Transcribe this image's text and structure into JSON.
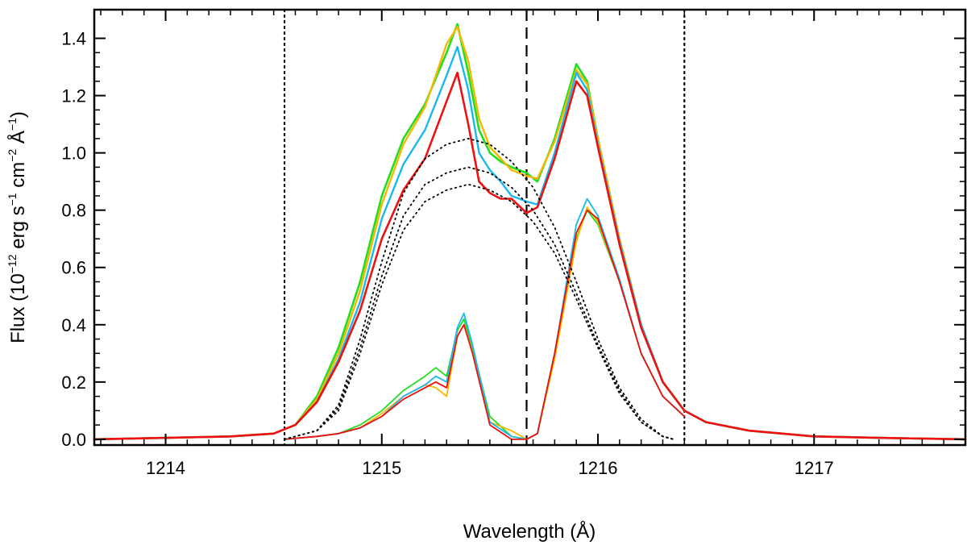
{
  "chart_data": {
    "type": "line",
    "title": "",
    "xlabel": "Wavelength (Å)",
    "ylabel_parts": {
      "base": "Flux (10",
      "exp1": "−12",
      "mid1": " erg s",
      "exp2": "−1",
      "mid2": " cm",
      "exp3": "−2",
      "mid3": " Å",
      "exp4": "−1",
      "end": ")"
    },
    "xlim": [
      1213.67,
      1217.7
    ],
    "ylim": [
      -0.02,
      1.5
    ],
    "x_ticks": [
      1214,
      1215,
      1216,
      1217
    ],
    "x_tick_labels": [
      "1214",
      "1215",
      "1216",
      "1217"
    ],
    "y_ticks": [
      0.0,
      0.2,
      0.4,
      0.6,
      0.8,
      1.0,
      1.2,
      1.4
    ],
    "y_tick_labels": [
      "0.0",
      "0.2",
      "0.4",
      "0.6",
      "0.8",
      "1.0",
      "1.2",
      "1.4"
    ],
    "vlines": [
      {
        "name": "left-integration-limit",
        "x": 1214.55,
        "style": "dotted"
      },
      {
        "name": "line-center",
        "x": 1215.67,
        "style": "dashed"
      },
      {
        "name": "right-integration-limit",
        "x": 1216.4,
        "style": "dotted"
      }
    ],
    "series": [
      {
        "name": "observed-green",
        "color": "#22dd22",
        "width": 2.6,
        "x": [
          1213.67,
          1214.0,
          1214.3,
          1214.5,
          1214.6,
          1214.7,
          1214.8,
          1214.9,
          1215.0,
          1215.1,
          1215.2,
          1215.3,
          1215.35,
          1215.4,
          1215.45,
          1215.5,
          1215.55,
          1215.6,
          1215.67,
          1215.72,
          1215.8,
          1215.9,
          1215.95,
          1216.0,
          1216.1,
          1216.2,
          1216.3,
          1216.4,
          1216.5,
          1216.7,
          1217.0,
          1217.3,
          1217.7
        ],
        "y": [
          0.0,
          0.005,
          0.01,
          0.02,
          0.05,
          0.15,
          0.32,
          0.55,
          0.85,
          1.05,
          1.17,
          1.35,
          1.45,
          1.28,
          1.08,
          1.0,
          0.97,
          0.95,
          0.93,
          0.9,
          1.05,
          1.31,
          1.25,
          1.05,
          0.7,
          0.4,
          0.2,
          0.1,
          0.06,
          0.03,
          0.01,
          0.005,
          0.0
        ]
      },
      {
        "name": "observed-orange",
        "color": "#f5b800",
        "width": 2.4,
        "x": [
          1213.67,
          1214.0,
          1214.3,
          1214.5,
          1214.6,
          1214.7,
          1214.8,
          1214.9,
          1215.0,
          1215.1,
          1215.2,
          1215.3,
          1215.35,
          1215.4,
          1215.45,
          1215.5,
          1215.55,
          1215.6,
          1215.67,
          1215.72,
          1215.8,
          1215.9,
          1215.95,
          1216.0,
          1216.1,
          1216.2,
          1216.3,
          1216.4,
          1216.5,
          1216.7,
          1217.0,
          1217.3,
          1217.7
        ],
        "y": [
          0.0,
          0.005,
          0.01,
          0.02,
          0.05,
          0.14,
          0.3,
          0.52,
          0.82,
          1.03,
          1.16,
          1.38,
          1.44,
          1.32,
          1.12,
          1.02,
          0.98,
          0.94,
          0.92,
          0.91,
          1.04,
          1.29,
          1.24,
          1.05,
          0.7,
          0.4,
          0.2,
          0.1,
          0.06,
          0.03,
          0.01,
          0.005,
          0.0
        ]
      },
      {
        "name": "observed-blue",
        "color": "#1ab8ee",
        "width": 2.4,
        "x": [
          1213.67,
          1214.0,
          1214.3,
          1214.5,
          1214.6,
          1214.7,
          1214.8,
          1214.9,
          1215.0,
          1215.1,
          1215.2,
          1215.3,
          1215.35,
          1215.4,
          1215.45,
          1215.5,
          1215.55,
          1215.6,
          1215.67,
          1215.72,
          1215.8,
          1215.9,
          1215.95,
          1216.0,
          1216.1,
          1216.2,
          1216.3,
          1216.4,
          1216.5,
          1216.7,
          1217.0,
          1217.3,
          1217.7
        ],
        "y": [
          0.0,
          0.005,
          0.01,
          0.02,
          0.05,
          0.13,
          0.28,
          0.48,
          0.77,
          0.96,
          1.08,
          1.27,
          1.37,
          1.22,
          1.0,
          0.94,
          0.9,
          0.85,
          0.83,
          0.82,
          1.0,
          1.28,
          1.22,
          1.03,
          0.69,
          0.4,
          0.2,
          0.1,
          0.06,
          0.03,
          0.01,
          0.005,
          0.0
        ]
      },
      {
        "name": "observed-red",
        "color": "#ee1111",
        "width": 2.6,
        "x": [
          1213.67,
          1214.0,
          1214.3,
          1214.5,
          1214.6,
          1214.7,
          1214.8,
          1214.9,
          1215.0,
          1215.1,
          1215.2,
          1215.3,
          1215.35,
          1215.4,
          1215.45,
          1215.5,
          1215.55,
          1215.6,
          1215.67,
          1215.72,
          1215.8,
          1215.9,
          1215.95,
          1216.0,
          1216.1,
          1216.2,
          1216.3,
          1216.4,
          1216.5,
          1216.7,
          1217.0,
          1217.3,
          1217.7
        ],
        "y": [
          0.0,
          0.005,
          0.01,
          0.02,
          0.05,
          0.13,
          0.27,
          0.45,
          0.7,
          0.87,
          0.98,
          1.18,
          1.28,
          1.1,
          0.9,
          0.86,
          0.84,
          0.84,
          0.79,
          0.81,
          0.98,
          1.25,
          1.2,
          1.02,
          0.68,
          0.39,
          0.2,
          0.1,
          0.06,
          0.03,
          0.01,
          0.005,
          0.0
        ]
      },
      {
        "name": "corrected-green",
        "color": "#22dd22",
        "width": 1.8,
        "x": [
          1214.55,
          1214.7,
          1214.8,
          1214.9,
          1215.0,
          1215.1,
          1215.2,
          1215.25,
          1215.3,
          1215.35,
          1215.38,
          1215.42,
          1215.5,
          1215.6,
          1215.67,
          1215.72,
          1215.8,
          1215.9,
          1215.95,
          1216.0,
          1216.1,
          1216.2,
          1216.3,
          1216.4
        ],
        "y": [
          0.0,
          0.01,
          0.02,
          0.05,
          0.1,
          0.17,
          0.22,
          0.25,
          0.22,
          0.38,
          0.42,
          0.32,
          0.08,
          0.01,
          0.0,
          0.02,
          0.3,
          0.7,
          0.8,
          0.75,
          0.55,
          0.3,
          0.15,
          0.08
        ]
      },
      {
        "name": "corrected-orange",
        "color": "#f5b800",
        "width": 1.8,
        "x": [
          1214.55,
          1214.7,
          1214.8,
          1214.9,
          1215.0,
          1215.1,
          1215.2,
          1215.25,
          1215.3,
          1215.35,
          1215.38,
          1215.42,
          1215.5,
          1215.6,
          1215.67,
          1215.72,
          1215.8,
          1215.9,
          1215.95,
          1216.0,
          1216.1,
          1216.2,
          1216.3,
          1216.4
        ],
        "y": [
          0.0,
          0.01,
          0.02,
          0.04,
          0.09,
          0.15,
          0.19,
          0.18,
          0.15,
          0.36,
          0.4,
          0.3,
          0.06,
          0.03,
          0.0,
          0.02,
          0.28,
          0.69,
          0.81,
          0.76,
          0.55,
          0.3,
          0.15,
          0.08
        ]
      },
      {
        "name": "corrected-blue",
        "color": "#1ab8ee",
        "width": 1.8,
        "x": [
          1214.55,
          1214.7,
          1214.8,
          1214.9,
          1215.0,
          1215.1,
          1215.2,
          1215.25,
          1215.3,
          1215.35,
          1215.38,
          1215.42,
          1215.5,
          1215.6,
          1215.67,
          1215.72,
          1215.8,
          1215.9,
          1215.95,
          1216.0,
          1216.1,
          1216.2,
          1216.3,
          1216.4
        ],
        "y": [
          0.0,
          0.01,
          0.02,
          0.04,
          0.08,
          0.15,
          0.19,
          0.22,
          0.2,
          0.39,
          0.44,
          0.33,
          0.06,
          0.01,
          0.0,
          0.02,
          0.3,
          0.75,
          0.84,
          0.78,
          0.56,
          0.3,
          0.15,
          0.08
        ]
      },
      {
        "name": "corrected-red",
        "color": "#ee1111",
        "width": 1.8,
        "x": [
          1214.55,
          1214.7,
          1214.8,
          1214.9,
          1215.0,
          1215.1,
          1215.2,
          1215.25,
          1215.3,
          1215.35,
          1215.38,
          1215.42,
          1215.5,
          1215.6,
          1215.67,
          1215.72,
          1215.8,
          1215.9,
          1215.95,
          1216.0,
          1216.1,
          1216.2,
          1216.3,
          1216.4
        ],
        "y": [
          0.0,
          0.01,
          0.02,
          0.04,
          0.08,
          0.14,
          0.18,
          0.2,
          0.18,
          0.36,
          0.4,
          0.3,
          0.05,
          0.0,
          0.0,
          0.02,
          0.3,
          0.72,
          0.8,
          0.77,
          0.55,
          0.3,
          0.15,
          0.08
        ]
      },
      {
        "name": "intrinsic-model-1",
        "color": "#000000",
        "width": 1.8,
        "dotted": true,
        "x": [
          1214.55,
          1214.7,
          1214.8,
          1214.9,
          1215.0,
          1215.1,
          1215.2,
          1215.3,
          1215.4,
          1215.5,
          1215.6,
          1215.7,
          1215.8,
          1215.9,
          1216.0,
          1216.1,
          1216.2,
          1216.3,
          1216.35
        ],
        "y": [
          0.0,
          0.03,
          0.12,
          0.35,
          0.62,
          0.86,
          0.98,
          1.03,
          1.05,
          1.03,
          0.97,
          0.88,
          0.74,
          0.55,
          0.35,
          0.18,
          0.07,
          0.01,
          0.0
        ]
      },
      {
        "name": "intrinsic-model-2",
        "color": "#000000",
        "width": 1.8,
        "dotted": true,
        "x": [
          1214.55,
          1214.7,
          1214.8,
          1214.9,
          1215.0,
          1215.1,
          1215.2,
          1215.3,
          1215.4,
          1215.5,
          1215.6,
          1215.7,
          1215.8,
          1215.9,
          1216.0,
          1216.1,
          1216.2,
          1216.3,
          1216.35
        ],
        "y": [
          0.0,
          0.03,
          0.11,
          0.32,
          0.57,
          0.78,
          0.89,
          0.93,
          0.95,
          0.93,
          0.88,
          0.8,
          0.68,
          0.51,
          0.33,
          0.17,
          0.06,
          0.01,
          0.0
        ]
      },
      {
        "name": "intrinsic-model-3",
        "color": "#000000",
        "width": 1.8,
        "dotted": true,
        "x": [
          1214.55,
          1214.7,
          1214.8,
          1214.9,
          1215.0,
          1215.1,
          1215.2,
          1215.3,
          1215.4,
          1215.5,
          1215.6,
          1215.7,
          1215.8,
          1215.9,
          1216.0,
          1216.1,
          1216.2,
          1216.3,
          1216.35
        ],
        "y": [
          0.0,
          0.03,
          0.1,
          0.3,
          0.54,
          0.73,
          0.83,
          0.87,
          0.89,
          0.87,
          0.83,
          0.76,
          0.65,
          0.49,
          0.32,
          0.16,
          0.06,
          0.01,
          0.0
        ]
      }
    ]
  }
}
